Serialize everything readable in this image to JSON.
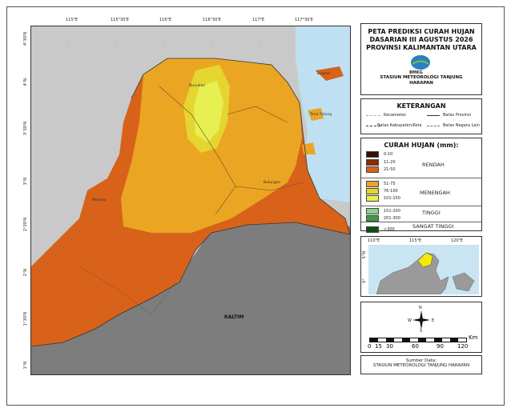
{
  "title_lines": [
    "PETA PREDIKSI CURAH HUJAN",
    "DASARIAN III AGUSTUS 2026",
    "PROVINSI KALIMANTAN UTARA"
  ],
  "agency": {
    "logo_text": "BMKG",
    "station_line1": "STASIUN METEOROLOGI TANJUNG",
    "station_line2": "HARAPAN"
  },
  "keterangan": {
    "heading": "KETERANGAN",
    "items": [
      "Kecamatan",
      "Batas Provinsi",
      "Batas Kabupaten/Kota",
      "Batas Negara Lain"
    ]
  },
  "legend": {
    "heading": "CURAH HUJAN (mm):",
    "classes": [
      {
        "range": "0-10",
        "color": "#3b0f00"
      },
      {
        "range": "11-20",
        "color": "#8b2a05"
      },
      {
        "range": "21-50",
        "color": "#d8621a"
      },
      {
        "range": "51-75",
        "color": "#eaa523"
      },
      {
        "range": "76-100",
        "color": "#e5d530"
      },
      {
        "range": "101-150",
        "color": "#e8ef50"
      },
      {
        "range": "151-200",
        "color": "#8fd08a"
      },
      {
        "range": "201-300",
        "color": "#3f9a3f"
      },
      {
        "range": ">300",
        "color": "#0c4d18"
      }
    ],
    "categories": [
      "RENDAH",
      "MENENGAH",
      "TINGGI",
      "SANGAT TINGGI"
    ]
  },
  "inset": {
    "lon_labels": [
      "110°E",
      "115°E",
      "120°E"
    ],
    "lat_labels": [
      "5°N",
      "0°"
    ]
  },
  "scalebar": {
    "ticks": [
      "0",
      "15",
      "30",
      "60",
      "90",
      "120"
    ],
    "unit": "Km",
    "north": "N",
    "south": "S",
    "east": "E",
    "west": "W"
  },
  "source": {
    "label": "Sumber Data:",
    "value": "STASIUN METEOROLOGI TANJUNG HARAPAN"
  },
  "map": {
    "lon_ticks": [
      "115°E",
      "115°30'E",
      "116°E",
      "116°30'E",
      "117°E",
      "117°30'E"
    ],
    "lat_ticks": [
      "4°30'N",
      "4°N",
      "3°30'N",
      "3°N",
      "2°30'N",
      "2°N",
      "1°30'N",
      "1°N"
    ],
    "place_labels": [
      "Nunukan",
      "Tarakan",
      "Malinau",
      "Bulungan",
      "Tana Tidung",
      "KALTIM"
    ],
    "watermark": "BMKG"
  }
}
